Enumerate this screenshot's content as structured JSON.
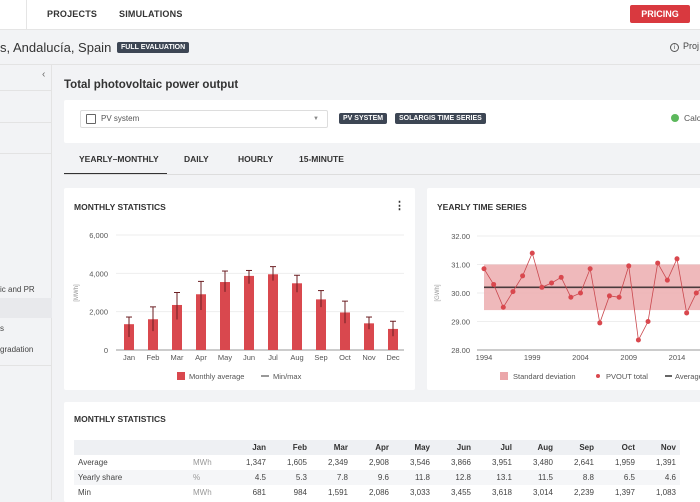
{
  "nav": {
    "projects": "PROJECTS",
    "simulations": "SIMULATIONS",
    "pricing": "PRICING"
  },
  "header": {
    "location": "s, Andalucía, Spain",
    "badge": "FULL EVALUATION",
    "project_info": "Proj"
  },
  "sidebar": {
    "collapse": "‹",
    "items": [
      "ic and PR",
      "",
      "s",
      "gradation"
    ]
  },
  "page_title": "Total photovoltaic power output",
  "selector": {
    "value": "PV system",
    "badges": [
      "PV SYSTEM",
      "SOLARGIS TIME SERIES"
    ],
    "status": "Calc",
    "status_color": "#5cb85c"
  },
  "tabs": [
    "YEARLY–MONTHLY",
    "DAILY",
    "HOURLY",
    "15-MINUTE"
  ],
  "colors": {
    "accent": "#d9393f",
    "bar": "#d9484e",
    "band": "#eba7aa"
  },
  "chart_data": [
    {
      "type": "bar",
      "title": "MONTHLY STATISTICS",
      "ylabel": "[MWh]",
      "ylim": [
        0,
        6000
      ],
      "yticks": [
        "0",
        "2,000",
        "4,000",
        "6,000"
      ],
      "categories": [
        "Jan",
        "Feb",
        "Mar",
        "Apr",
        "May",
        "Jun",
        "Jul",
        "Aug",
        "Sep",
        "Oct",
        "Nov",
        "Dec"
      ],
      "series": [
        {
          "name": "Monthly average",
          "values": [
            1347,
            1605,
            2349,
            2908,
            3546,
            3866,
            3951,
            3480,
            2641,
            1959,
            1391,
            1100
          ]
        },
        {
          "name": "Min/max",
          "min": [
            681,
            984,
            1591,
            2086,
            3033,
            3455,
            3618,
            3014,
            2239,
            1397,
            1083,
            720
          ],
          "max": [
            1720,
            2250,
            3000,
            3580,
            4120,
            4150,
            4350,
            3900,
            3100,
            2550,
            1720,
            1500
          ]
        }
      ],
      "legend": "bottom"
    },
    {
      "type": "line",
      "title": "YEARLY TIME SERIES",
      "ylabel": "[GWh]",
      "ylim": [
        28,
        32
      ],
      "yticks": [
        "28.00",
        "29.00",
        "30.00",
        "31.00",
        "32.00"
      ],
      "xticks": [
        "1994",
        "1999",
        "2004",
        "2009",
        "2014"
      ],
      "x": [
        1994,
        1995,
        1996,
        1997,
        1998,
        1999,
        2000,
        2001,
        2002,
        2003,
        2004,
        2005,
        2006,
        2007,
        2008,
        2009,
        2010,
        2011,
        2012,
        2013,
        2014,
        2015,
        2016,
        2017
      ],
      "series": [
        {
          "name": "PVOUT total",
          "values": [
            30.85,
            30.3,
            29.5,
            30.05,
            30.6,
            31.4,
            30.2,
            30.35,
            30.55,
            29.85,
            30.0,
            30.85,
            28.95,
            29.9,
            29.85,
            30.95,
            28.35,
            29.0,
            31.05,
            30.45,
            31.2,
            29.3,
            30.0,
            30.3
          ]
        },
        {
          "name": "Average",
          "value": 30.2
        },
        {
          "name": "Standard deviation",
          "range": [
            29.4,
            31.0
          ]
        }
      ],
      "legend": "bottom"
    }
  ],
  "table": {
    "title": "MONTHLY STATISTICS",
    "columns": [
      "Jan",
      "Feb",
      "Mar",
      "Apr",
      "May",
      "Jun",
      "Jul",
      "Aug",
      "Sep",
      "Oct",
      "Nov"
    ],
    "rows": [
      {
        "label": "Average",
        "unit": "MWh",
        "values": [
          "1,347",
          "1,605",
          "2,349",
          "2,908",
          "3,546",
          "3,866",
          "3,951",
          "3,480",
          "2,641",
          "1,959",
          "1,391"
        ]
      },
      {
        "label": "Yearly share",
        "unit": "%",
        "values": [
          "4.5",
          "5.3",
          "7.8",
          "9.6",
          "11.8",
          "12.8",
          "13.1",
          "11.5",
          "8.8",
          "6.5",
          "4.6"
        ]
      },
      {
        "label": "Min",
        "unit": "MWh",
        "values": [
          "681",
          "984",
          "1,591",
          "2,086",
          "3,033",
          "3,455",
          "3,618",
          "3,014",
          "2,239",
          "1,397",
          "1,083"
        ]
      }
    ]
  }
}
